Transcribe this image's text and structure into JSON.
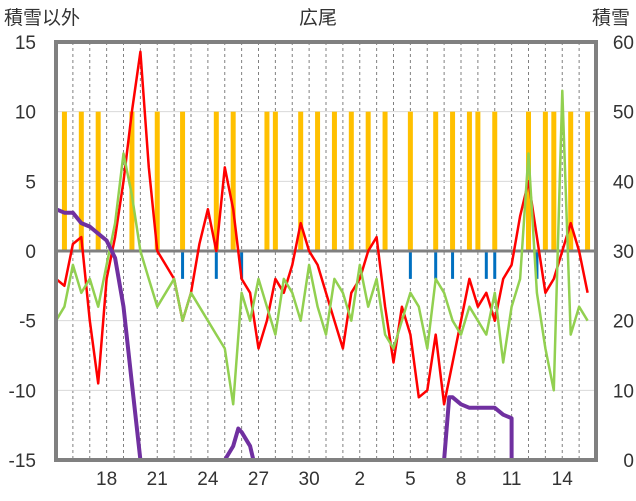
{
  "chart_data": {
    "type": "line",
    "title": "広尾",
    "left_axis_label": "積雪以外",
    "right_axis_label": "積雪",
    "y_left": {
      "min": -15,
      "max": 15,
      "ticks": [
        15,
        10,
        5,
        0,
        -5,
        -10,
        -15
      ]
    },
    "y_right": {
      "min": 0,
      "max": 60,
      "ticks": [
        60,
        50,
        40,
        30,
        20,
        10,
        0
      ]
    },
    "x_ticks": [
      "18",
      "21",
      "24",
      "27",
      "30",
      "2",
      "5",
      "8",
      "11",
      "14"
    ],
    "x_tick_days": [
      3,
      6,
      9,
      12,
      15,
      18,
      21,
      24,
      27,
      30
    ],
    "x_range_days": [
      0,
      32
    ],
    "grid": "vertical dashed lines daily, horizontal lines at 5-unit steps",
    "colors": {
      "max_temp": "#ff0000",
      "min_temp": "#92d050",
      "precip": "#ffc000",
      "wind_or_sunshine": "#0070c0",
      "snow_depth": "#7030a0",
      "zero_line": "#808080",
      "frame": "#808080"
    },
    "series": [
      {
        "name": "",
        "axis": "left",
        "color": "#ff0000",
        "x": [
          0,
          0.5,
          1,
          1.5,
          2,
          2.5,
          3,
          3.5,
          4,
          4.5,
          5,
          5.5,
          6,
          6.5,
          7,
          7.5,
          8,
          8.5,
          9,
          9.5,
          10,
          10.5,
          11,
          11.5,
          12,
          12.5,
          13,
          13.5,
          14,
          14.5,
          15,
          15.5,
          16,
          16.5,
          17,
          17.5,
          18,
          18.5,
          19,
          19.5,
          20,
          20.5,
          21,
          21.5,
          22,
          22.5,
          23,
          23.5,
          24,
          24.5,
          25,
          25.5,
          26,
          26.5,
          27,
          27.5,
          28,
          28.5,
          29,
          29.5,
          30,
          30.5,
          31,
          31.5
        ],
        "y": [
          -2,
          -2.5,
          0.5,
          1,
          -5,
          -9.5,
          -2,
          1,
          5,
          10,
          14.3,
          6,
          0,
          -1,
          -2,
          -5,
          -3,
          0.5,
          3,
          0,
          6,
          3,
          -2,
          -3,
          -7,
          -5,
          -2,
          -3,
          -1,
          2,
          0,
          -1,
          -3,
          -5,
          -7,
          -3,
          -2,
          0,
          1,
          -4,
          -8,
          -4,
          -6,
          -10.5,
          -10,
          -6,
          -11,
          -8,
          -5,
          -2,
          -4,
          -3,
          -5,
          -2,
          -1,
          2.5,
          5,
          1,
          -3,
          -2,
          0,
          2,
          0,
          -3
        ]
      },
      {
        "name": "",
        "axis": "left",
        "color": "#92d050",
        "x": [
          0,
          0.5,
          1,
          1.5,
          2,
          2.5,
          3,
          3.5,
          4,
          4.5,
          5,
          5.5,
          6,
          6.5,
          7,
          7.5,
          8,
          8.5,
          9,
          9.5,
          10,
          10.5,
          11,
          11.5,
          12,
          12.5,
          13,
          13.5,
          14,
          14.5,
          15,
          15.5,
          16,
          16.5,
          17,
          17.5,
          18,
          18.5,
          19,
          19.5,
          20,
          20.5,
          21,
          21.5,
          22,
          22.5,
          23,
          23.5,
          24,
          24.5,
          25,
          25.5,
          26,
          26.5,
          27,
          27.5,
          28,
          28.5,
          29,
          29.5,
          30,
          30.5,
          31,
          31.5
        ],
        "y": [
          -5,
          -4,
          -1,
          -3,
          -2,
          -4,
          -1,
          2,
          7,
          4,
          0,
          -2,
          -4,
          -3,
          -2,
          -5,
          -3,
          -4,
          -5,
          -6,
          -7,
          -11,
          -3,
          -5,
          -2,
          -4,
          -6,
          -2,
          -3,
          -5,
          -1,
          -4,
          -6,
          -2,
          -3,
          -5,
          -1,
          -4,
          -2,
          -6,
          -7,
          -5,
          -3,
          -4,
          -7,
          -2,
          -3,
          -5,
          -6,
          -4,
          -5,
          -6,
          -3,
          -8,
          -4,
          -2,
          7,
          -3,
          -7,
          -10,
          11.5,
          -6,
          -4,
          -5
        ]
      },
      {
        "name": "",
        "axis": "right",
        "color": "#7030a0",
        "x": [
          0,
          0.5,
          1,
          1.5,
          2,
          2.5,
          3,
          3.5,
          4,
          4.5,
          5,
          5,
          10,
          10.5,
          10.8,
          11,
          11.5,
          11.7,
          22.5,
          23,
          23.3,
          23.5,
          24,
          24.5,
          25,
          25.5,
          26,
          26.5,
          27,
          27,
          31.5
        ],
        "y": [
          36,
          35.5,
          35.5,
          34,
          33.5,
          32.5,
          31.5,
          29,
          22,
          11,
          0,
          0,
          0,
          2,
          4.5,
          4,
          2,
          0,
          0,
          0,
          9,
          9,
          8,
          7.5,
          7.5,
          7.5,
          7.5,
          6.5,
          6,
          0,
          0
        ]
      }
    ],
    "bars_precip_days": [
      0.5,
      1.5,
      2.5,
      4.5,
      6,
      7.5,
      9.5,
      10.5,
      12.5,
      13,
      14.5,
      15.5,
      16.5,
      17.5,
      18.5,
      19.5,
      21,
      22.5,
      23.5,
      24.5,
      25,
      26,
      28,
      29,
      29.5,
      30.5,
      31.5
    ],
    "bars_precip_value_left_axis": 10
  }
}
